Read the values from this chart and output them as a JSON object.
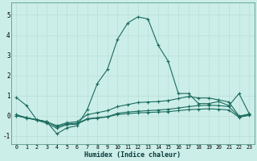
{
  "xlabel": "Humidex (Indice chaleur)",
  "background_color": "#cceee8",
  "line_color": "#1a6b5e",
  "grid_color": "#b8ddd8",
  "xlim": [
    -0.5,
    23.5
  ],
  "ylim": [
    -1.4,
    5.6
  ],
  "xticks": [
    0,
    1,
    2,
    3,
    4,
    5,
    6,
    7,
    8,
    9,
    10,
    11,
    12,
    13,
    14,
    15,
    16,
    17,
    18,
    19,
    20,
    21,
    22,
    23
  ],
  "yticks": [
    -1,
    0,
    1,
    2,
    3,
    4,
    5
  ],
  "series": [
    {
      "x": [
        0,
        1,
        2,
        3,
        4,
        5,
        6,
        7,
        8,
        9,
        10,
        11,
        12,
        13,
        14,
        15,
        16,
        17,
        18,
        19,
        20,
        21,
        22,
        23
      ],
      "y": [
        0.9,
        0.5,
        -0.2,
        -0.3,
        -0.9,
        -0.6,
        -0.5,
        0.3,
        1.6,
        2.3,
        3.8,
        4.6,
        4.9,
        4.8,
        3.5,
        2.7,
        1.1,
        1.1,
        0.6,
        0.6,
        0.7,
        0.5,
        1.1,
        0.1
      ]
    },
    {
      "x": [
        0,
        1,
        2,
        3,
        4,
        5,
        6,
        7,
        8,
        9,
        10,
        11,
        12,
        13,
        14,
        15,
        16,
        17,
        18,
        19,
        20,
        21,
        22,
        23
      ],
      "y": [
        0.05,
        -0.1,
        -0.2,
        -0.3,
        -0.5,
        -0.35,
        -0.3,
        0.05,
        0.15,
        0.25,
        0.45,
        0.55,
        0.65,
        0.68,
        0.7,
        0.75,
        0.85,
        0.95,
        0.88,
        0.88,
        0.78,
        0.68,
        -0.02,
        0.08
      ]
    },
    {
      "x": [
        0,
        1,
        2,
        3,
        4,
        5,
        6,
        7,
        8,
        9,
        10,
        11,
        12,
        13,
        14,
        15,
        16,
        17,
        18,
        19,
        20,
        21,
        22,
        23
      ],
      "y": [
        0.0,
        -0.1,
        -0.2,
        -0.3,
        -0.55,
        -0.4,
        -0.38,
        -0.15,
        -0.1,
        -0.05,
        0.12,
        0.18,
        0.22,
        0.25,
        0.28,
        0.32,
        0.38,
        0.45,
        0.5,
        0.52,
        0.5,
        0.45,
        -0.05,
        0.05
      ]
    },
    {
      "x": [
        0,
        1,
        2,
        3,
        4,
        5,
        6,
        7,
        8,
        9,
        10,
        11,
        12,
        13,
        14,
        15,
        16,
        17,
        18,
        19,
        20,
        21,
        22,
        23
      ],
      "y": [
        0.0,
        -0.12,
        -0.22,
        -0.38,
        -0.62,
        -0.45,
        -0.42,
        -0.18,
        -0.12,
        -0.06,
        0.06,
        0.1,
        0.14,
        0.16,
        0.18,
        0.2,
        0.25,
        0.3,
        0.32,
        0.34,
        0.32,
        0.28,
        -0.08,
        0.02
      ]
    }
  ]
}
